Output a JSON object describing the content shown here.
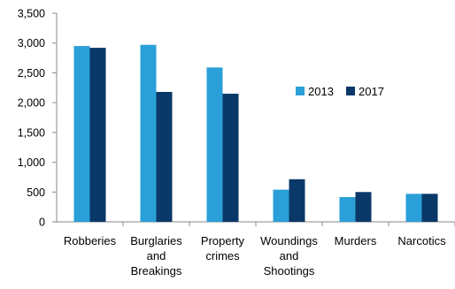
{
  "chart_data": {
    "type": "bar",
    "title": "",
    "xlabel": "",
    "ylabel": "",
    "categories": [
      [
        "Robberies"
      ],
      [
        "Burglaries",
        "and",
        "Breakings"
      ],
      [
        "Property",
        "crimes"
      ],
      [
        "Woundings",
        "and",
        "Shootings"
      ],
      [
        "Murders"
      ],
      [
        "Narcotics"
      ]
    ],
    "series": [
      {
        "name": "2013",
        "color": "#2a9fd8",
        "values": [
          2950,
          2970,
          2590,
          540,
          415,
          470
        ]
      },
      {
        "name": "2017",
        "color": "#0a3868",
        "values": [
          2920,
          2180,
          2150,
          715,
          500,
          470
        ]
      }
    ],
    "ylim": [
      0,
      3500
    ],
    "yticks": [
      0,
      500,
      1000,
      1500,
      2000,
      2500,
      3000,
      3500
    ],
    "ytick_labels": [
      "0",
      "500",
      "1,000",
      "1,500",
      "2,000",
      "2,500",
      "3,000",
      "3,500"
    ],
    "grid": false,
    "legend_position": "right-middle",
    "axis_color": "#8a8a8a"
  }
}
